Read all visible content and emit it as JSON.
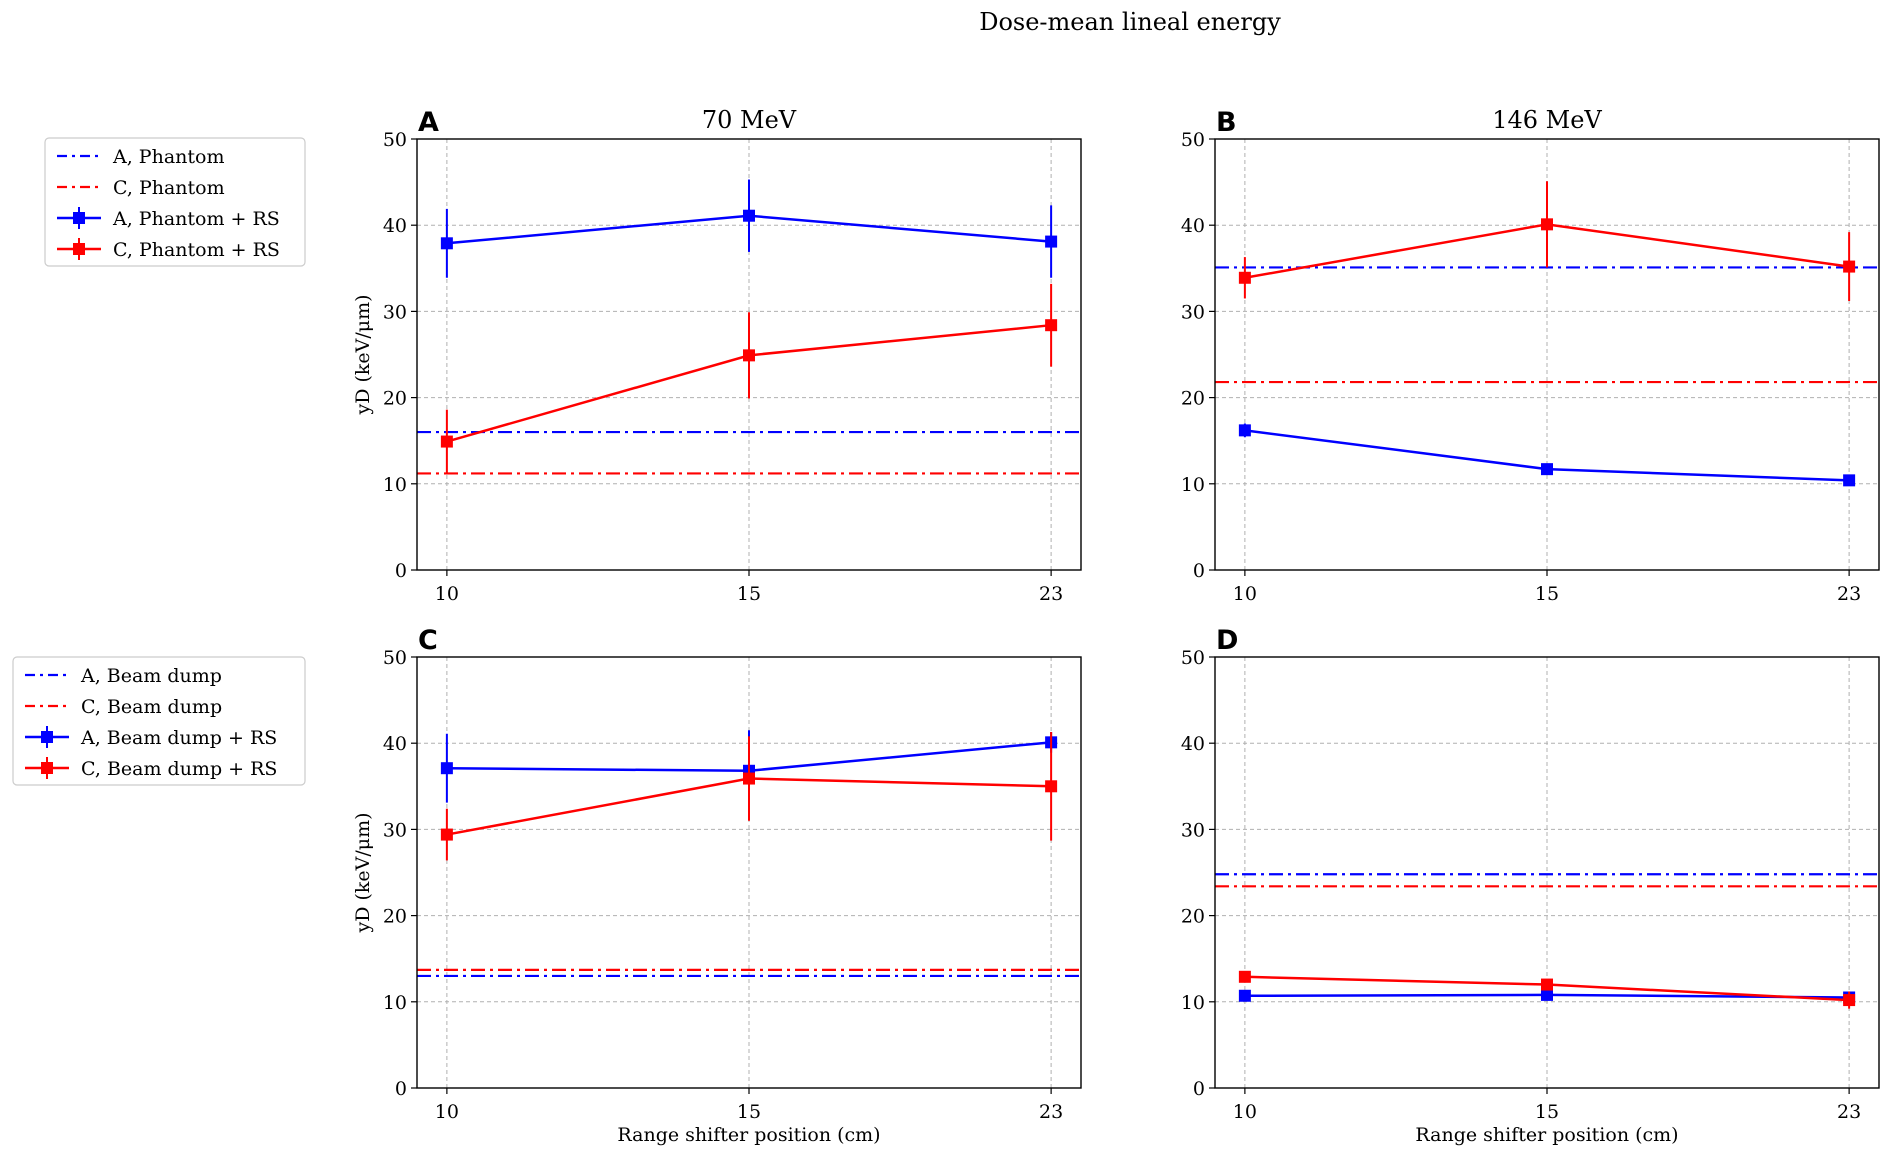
{
  "figure_title": "Dose-mean lineal energy",
  "colors": {
    "A": "#0000ff",
    "C": "#ff0000",
    "grid": "#b0b0b0",
    "axis": "#000000"
  },
  "legends": [
    {
      "panel_row": "top",
      "entries": [
        {
          "label": "A, Phantom",
          "color": "#0000ff",
          "style": "dashdot"
        },
        {
          "label": "C, Phantom",
          "color": "#ff0000",
          "style": "dashdot"
        },
        {
          "label": "A, Phantom + RS",
          "color": "#0000ff",
          "style": "errorbar"
        },
        {
          "label": "C, Phantom + RS",
          "color": "#ff0000",
          "style": "errorbar"
        }
      ]
    },
    {
      "panel_row": "bottom",
      "entries": [
        {
          "label": "A, Beam dump",
          "color": "#0000ff",
          "style": "dashdot"
        },
        {
          "label": "C, Beam dump",
          "color": "#ff0000",
          "style": "dashdot"
        },
        {
          "label": "A, Beam dump + RS",
          "color": "#0000ff",
          "style": "errorbar"
        },
        {
          "label": "C, Beam dump + RS",
          "color": "#ff0000",
          "style": "errorbar"
        }
      ]
    }
  ],
  "chart_data": [
    {
      "panel": "A",
      "type": "line",
      "title": "70 MeV",
      "xlabel": "",
      "ylabel": "yD (keV/μm)",
      "categories": [
        "10",
        "15",
        "23"
      ],
      "ylim": [
        0,
        50
      ],
      "yticks": [
        0,
        10,
        20,
        30,
        40,
        50
      ],
      "grid": true,
      "series": [
        {
          "name": "A, Phantom + RS",
          "color": "#0000ff",
          "values": [
            37.9,
            41.1,
            38.1
          ],
          "errors": [
            4.0,
            4.2,
            4.2
          ]
        },
        {
          "name": "C, Phantom + RS",
          "color": "#ff0000",
          "values": [
            14.9,
            24.9,
            28.4
          ],
          "errors": [
            3.7,
            5.0,
            4.8
          ]
        }
      ],
      "reference_lines": [
        {
          "name": "A, Phantom",
          "color": "#0000ff",
          "value": 16.0
        },
        {
          "name": "C, Phantom",
          "color": "#ff0000",
          "value": 11.2
        }
      ]
    },
    {
      "panel": "B",
      "type": "line",
      "title": "146 MeV",
      "xlabel": "",
      "ylabel": "",
      "categories": [
        "10",
        "15",
        "23"
      ],
      "ylim": [
        0,
        50
      ],
      "yticks": [
        0,
        10,
        20,
        30,
        40,
        50
      ],
      "grid": true,
      "series": [
        {
          "name": "A, Phantom + RS",
          "color": "#0000ff",
          "values": [
            16.2,
            11.7,
            10.4
          ],
          "errors": [
            0.8,
            0.5,
            0.4
          ]
        },
        {
          "name": "C, Phantom + RS",
          "color": "#ff0000",
          "values": [
            33.9,
            40.1,
            35.2
          ],
          "errors": [
            2.4,
            5.0,
            4.0
          ]
        }
      ],
      "reference_lines": [
        {
          "name": "A, Phantom",
          "color": "#0000ff",
          "value": 35.1
        },
        {
          "name": "C, Phantom",
          "color": "#ff0000",
          "value": 21.8
        }
      ]
    },
    {
      "panel": "C",
      "type": "line",
      "title": "",
      "xlabel": "Range shifter position (cm)",
      "ylabel": "yD (keV/μm)",
      "categories": [
        "10",
        "15",
        "23"
      ],
      "ylim": [
        0,
        50
      ],
      "yticks": [
        0,
        10,
        20,
        30,
        40,
        50
      ],
      "grid": true,
      "series": [
        {
          "name": "A, Beam dump + RS",
          "color": "#0000ff",
          "values": [
            37.1,
            36.8,
            40.1
          ],
          "errors": [
            4.0,
            4.7,
            1.2
          ]
        },
        {
          "name": "C, Beam dump + RS",
          "color": "#ff0000",
          "values": [
            29.4,
            35.9,
            35.0
          ],
          "errors": [
            3.0,
            4.9,
            6.3
          ]
        }
      ],
      "reference_lines": [
        {
          "name": "A, Beam dump",
          "color": "#0000ff",
          "value": 13.0
        },
        {
          "name": "C, Beam dump",
          "color": "#ff0000",
          "value": 13.7
        }
      ]
    },
    {
      "panel": "D",
      "type": "line",
      "title": "",
      "xlabel": "Range shifter position (cm)",
      "ylabel": "",
      "categories": [
        "10",
        "15",
        "23"
      ],
      "ylim": [
        0,
        50
      ],
      "yticks": [
        0,
        10,
        20,
        30,
        40,
        50
      ],
      "grid": true,
      "series": [
        {
          "name": "A, Beam dump + RS",
          "color": "#0000ff",
          "values": [
            10.7,
            10.8,
            10.5
          ],
          "errors": [
            0.4,
            0.4,
            0.5
          ]
        },
        {
          "name": "C, Beam dump + RS",
          "color": "#ff0000",
          "values": [
            12.9,
            12.0,
            10.2
          ],
          "errors": [
            0.6,
            0.6,
            1.0
          ]
        }
      ],
      "reference_lines": [
        {
          "name": "A, Beam dump",
          "color": "#0000ff",
          "value": 24.8
        },
        {
          "name": "C, Beam dump",
          "color": "#ff0000",
          "value": 23.4
        }
      ]
    }
  ]
}
